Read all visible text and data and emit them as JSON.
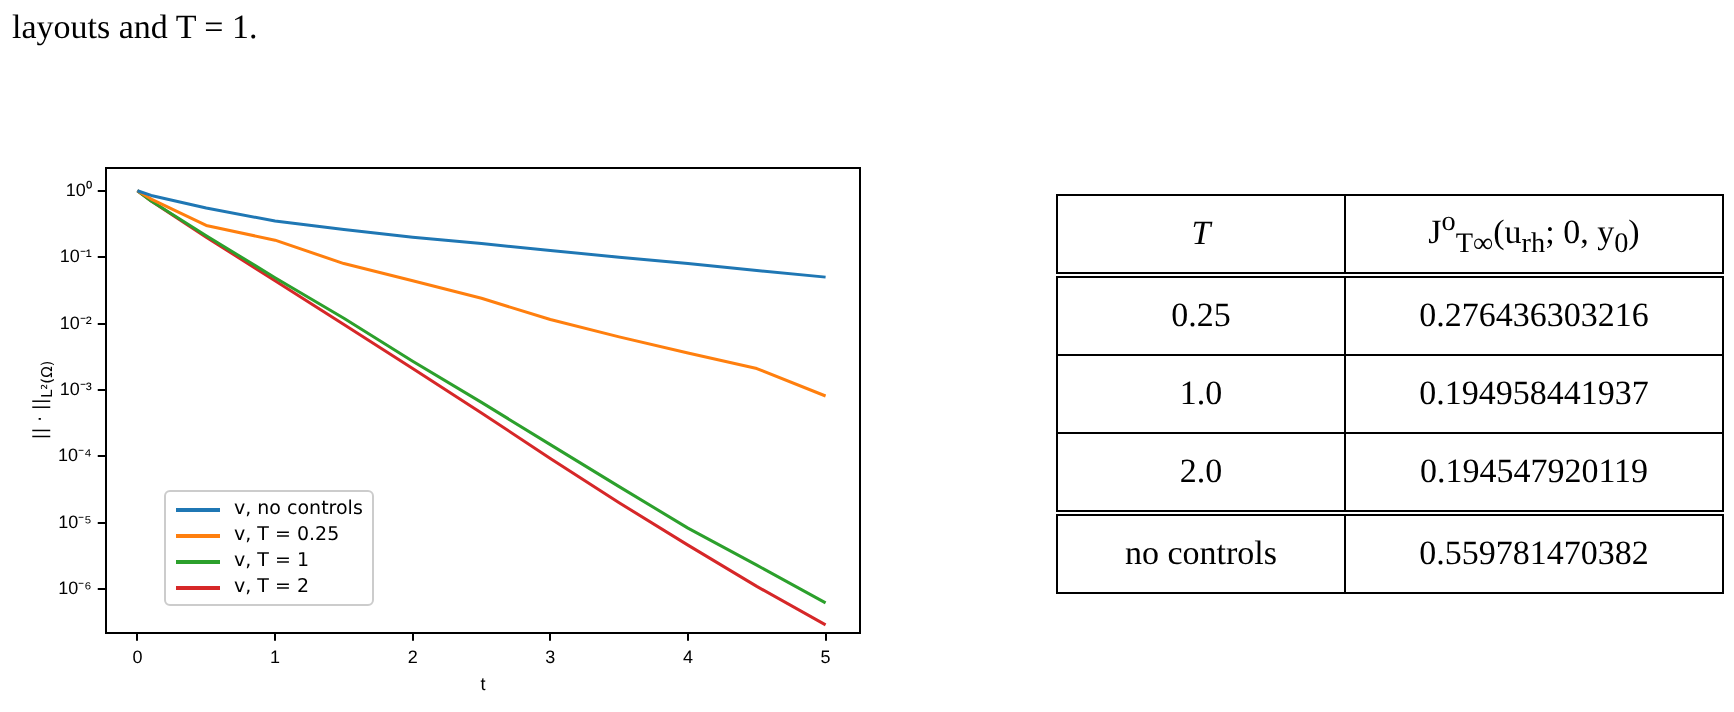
{
  "chart_data": [
    {
      "type": "line",
      "xlabel": "t",
      "ylabel": "|| · ||$_{L²(Ω)}$",
      "log": "y",
      "grid": false,
      "legend": "bottom left",
      "marker": "none",
      "line_style": "solid",
      "annotations": [
        "layouts and T = 1."
      ],
      "xlim": [
        -0.23,
        5.25
      ],
      "xticks": [
        0,
        1,
        2,
        3,
        4,
        5
      ],
      "ylim": [
        2.2e-07,
        2.2
      ],
      "yticks": [
        {
          "value": 1,
          "label": "10⁰"
        },
        {
          "value": 0.1,
          "label": "10⁻¹"
        },
        {
          "value": 0.01,
          "label": "10⁻²"
        },
        {
          "value": 0.001,
          "label": "10⁻³"
        },
        {
          "value": 0.0001,
          "label": "10⁻⁴"
        },
        {
          "value": 1e-05,
          "label": "10⁻⁵"
        },
        {
          "value": 1e-06,
          "label": "10⁻⁶"
        }
      ],
      "x": [
        0,
        0.1,
        0.5,
        1,
        1.5,
        2,
        2.5,
        3,
        3.5,
        4,
        4.5,
        5
      ],
      "series": [
        {
          "name": "v, no controls",
          "color": "#1f77b4",
          "values": [
            1,
            0.85,
            0.55,
            0.35,
            0.26,
            0.2,
            0.16,
            0.126,
            0.1,
            0.08,
            0.063,
            0.05
          ]
        },
        {
          "name": "v, T = 0.25",
          "color": "#ff7f0e",
          "values": [
            1,
            0.75,
            0.3,
            0.18,
            0.08,
            0.044,
            0.024,
            0.0115,
            0.0063,
            0.0036,
            0.0021,
            0.00081
          ]
        },
        {
          "name": "v, T = 1",
          "color": "#2ca02c",
          "values": [
            1,
            0.7,
            0.21,
            0.049,
            0.012,
            0.0027,
            0.00065,
            0.00015,
            3.5e-05,
            8.3e-06,
            2.3e-06,
            6.2e-07
          ]
        },
        {
          "name": "v, T = 2",
          "color": "#d62728",
          "values": [
            1,
            0.7,
            0.2,
            0.044,
            0.0097,
            0.0021,
            0.00045,
            9.3e-05,
            2e-05,
            4.6e-06,
            1.1e-06,
            2.9e-07
          ]
        }
      ]
    },
    {
      "type": "other",
      "annotations": [
        "T",
        "J$^{o}$$_{T∞}$(u$_{rh}$; 0, y$_{0}$)",
        "0.25",
        "0.276436303216",
        "1.0",
        "0.194958441937",
        "2.0",
        "0.194547920119",
        "no controls",
        "0.559781470382"
      ]
    }
  ]
}
